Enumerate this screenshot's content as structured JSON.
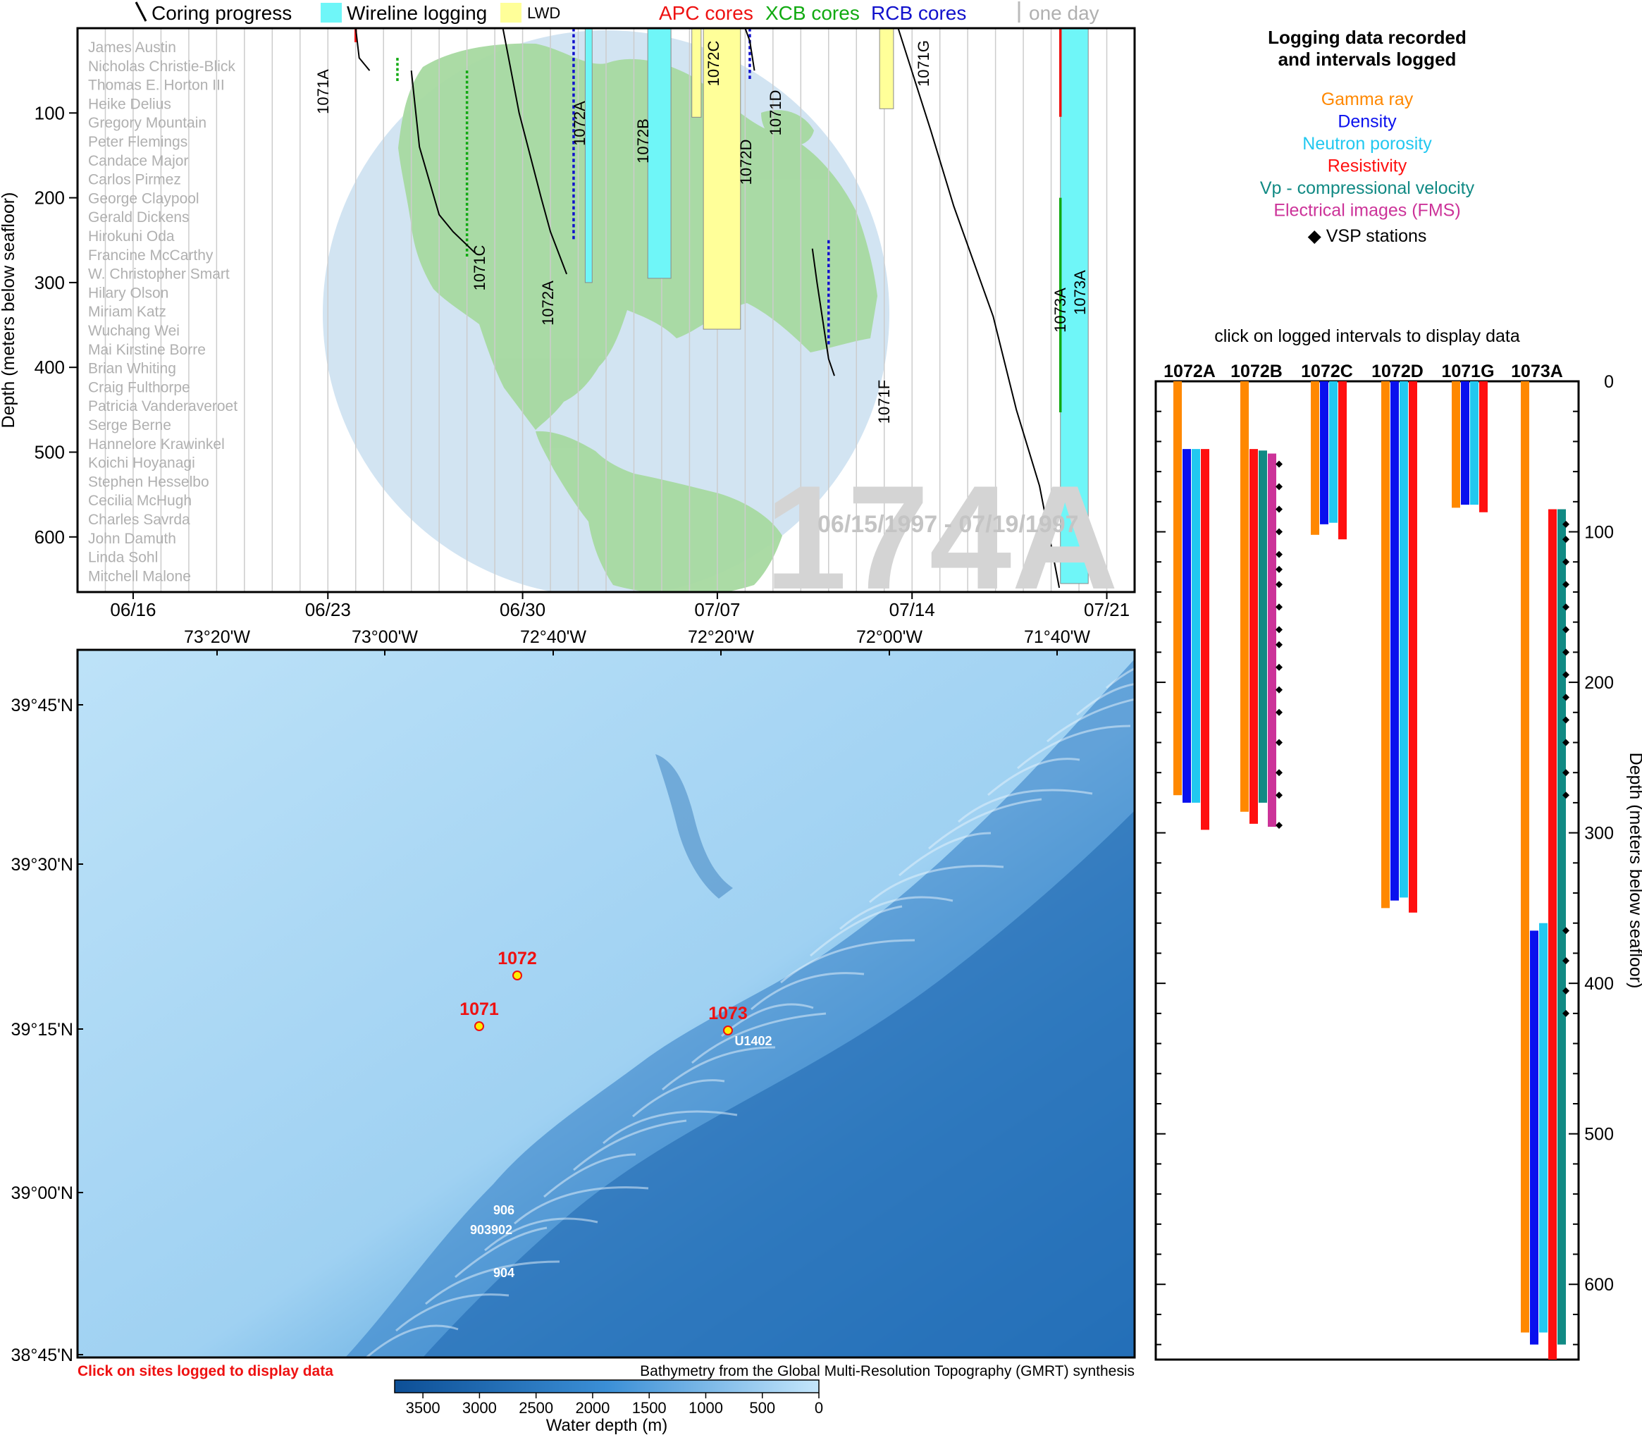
{
  "colors": {
    "apc": "#ee1111",
    "xcb": "#11aa11",
    "rcb": "#1111cc",
    "wireline": "#6ff6f8",
    "lwd": "#ffff99",
    "gamma": "#ff8800",
    "density": "#0a10ee",
    "neutron": "#22c8f0",
    "resistivity": "#ff1010",
    "vp": "#118a84",
    "fms": "#cc3399",
    "globe_ocean": "#d2e4f2",
    "globe_land": "#a6d9a0",
    "grid": "#cccccc",
    "labels_grey": "#b0b0b0",
    "watermark": "#d4d4d4",
    "bathy_shallow": "#b4dcf6",
    "bathy_deep": "#1360a6"
  },
  "legend": {
    "coring": "Coring progress",
    "wireline": "Wireline logging",
    "lwd": "LWD",
    "apc": "APC cores",
    "xcb": "XCB cores",
    "rcb": "RCB cores",
    "oneday": "one day"
  },
  "timeline": {
    "ylabel": "Depth (meters below seafloor)",
    "yticks": [
      "100",
      "200",
      "300",
      "400",
      "500",
      "600"
    ],
    "xticks": [
      "06/16",
      "06/23",
      "06/30",
      "07/07",
      "07/14",
      "07/21"
    ],
    "watermark": "174A",
    "daterange": "06/15/1997 - 07/19/1997",
    "participants": [
      "James Austin",
      "Nicholas Christie-Blick",
      "Thomas E. Horton III",
      "Heike Delius",
      "Gregory Mountain",
      "Peter Flemings",
      "Candace Major",
      "Carlos Pirmez",
      "George Claypool",
      "Gerald Dickens",
      "Hirokuni Oda",
      "Francine McCarthy",
      "W. Christopher Smart",
      "Hilary Olson",
      "Miriam Katz",
      "Wuchang Wei",
      "Mai Kirstine Borre",
      "Brian Whiting",
      "Craig Fulthorpe",
      "Patricia Vanderaveroet",
      "Serge Berne",
      "Hannelore Krawinkel",
      "Koichi Hoyanagi",
      "Stephen Hesselbo",
      "Cecilia McHugh",
      "Charles Savrda",
      "John Damuth",
      "Linda Sohl",
      "Mitchell Malone"
    ],
    "hole_labels": [
      "1071A",
      "1071C",
      "1072A",
      "1072A",
      "1072B",
      "1072C",
      "1072D",
      "1071D",
      "1071G",
      "1071F",
      "1073A",
      "1073A"
    ]
  },
  "map": {
    "lon_labels": [
      "73°20'W",
      "73°00'W",
      "72°40'W",
      "72°20'W",
      "72°00'W",
      "71°40'W"
    ],
    "lat_labels": [
      "39°45'N",
      "39°30'N",
      "39°15'N",
      "39°00'N",
      "38°45'N"
    ],
    "sites": [
      "1072",
      "1071",
      "1073"
    ],
    "other_sites": [
      "U1402",
      "906",
      "903902",
      "904"
    ],
    "click_note": "Click on sites logged to display data",
    "credit": "Bathymetry from the Global Multi-Resolution Topography (GMRT) synthesis",
    "colorbar_ticks": [
      "3500",
      "3000",
      "2500",
      "2000",
      "1500",
      "1000",
      "500",
      "0"
    ],
    "colorbar_label": "Water depth (m)"
  },
  "logs": {
    "title_line1": "Logging data recorded",
    "title_line2": "and intervals logged",
    "types": [
      "Gamma ray",
      "Density",
      "Neutron porosity",
      "Resistivity",
      "Vp - compressional velocity",
      "Electrical images (FMS)"
    ],
    "vsp": "VSP stations",
    "click_note": "click on logged intervals to display data",
    "ylabel": "Depth (meters below seafloor)"
  },
  "chart_data": [
    {
      "type": "bar",
      "title": "",
      "xlabel": "",
      "ylabel": "Depth (meters below seafloor)",
      "ylim": [
        0,
        665
      ],
      "x_range": [
        "06/14/1997",
        "07/22/1997"
      ],
      "legend": "top",
      "grid": "vertical, one day",
      "categories": [
        "06/16",
        "06/23",
        "06/30",
        "07/07",
        "07/14",
        "07/21"
      ],
      "series": [
        {
          "name": "Wireline logging",
          "intervals": [
            {
              "hole": "1072A",
              "start": "07/02 06:00",
              "end": "07/02 12:00",
              "top": 0,
              "bottom": 300
            },
            {
              "hole": "1072B",
              "start": "07/04 12:00",
              "end": "07/05 08:00",
              "top": 0,
              "bottom": 295
            },
            {
              "hole": "1073A",
              "start": "07/19 08:00",
              "end": "07/20 08:00",
              "top": 0,
              "bottom": 655
            }
          ]
        },
        {
          "name": "LWD",
          "intervals": [
            {
              "hole": "1072C",
              "start": "07/06 02:00",
              "end": "07/06 10:00",
              "top": 0,
              "bottom": 105
            },
            {
              "hole": "1072D",
              "start": "07/06 12:00",
              "end": "07/07 20:00",
              "top": 0,
              "bottom": 355
            },
            {
              "hole": "1071G",
              "start": "07/12 20:00",
              "end": "07/13 08:00",
              "top": 0,
              "bottom": 95
            }
          ]
        },
        {
          "name": "Coring progress",
          "lines": [
            {
              "hole": "1071A",
              "points": [
                [
                  "06/24 00:00",
                  0
                ],
                [
                  "06/24 03:00",
                  35
                ],
                [
                  "06/24 12:00",
                  50
                ]
              ]
            },
            {
              "hole": "1071C",
              "points": [
                [
                  "06/26 00:00",
                  50
                ],
                [
                  "06/26 07:00",
                  140
                ],
                [
                  "06/27 00:00",
                  220
                ],
                [
                  "06/27 12:00",
                  240
                ],
                [
                  "06/28 07:00",
                  265
                ]
              ]
            },
            {
              "hole": "1072A",
              "points": [
                [
                  "06/29 07:00",
                  0
                ],
                [
                  "06/29 21:00",
                  100
                ],
                [
                  "06/30 16:00",
                  200
                ],
                [
                  "07/01 00:00",
                  240
                ],
                [
                  "07/01 14:00",
                  290
                ]
              ]
            },
            {
              "hole": "1071D",
              "points": [
                [
                  "07/08 00:00",
                  0
                ],
                [
                  "07/08 04:00",
                  15
                ],
                [
                  "07/08 08:00",
                  50
                ]
              ]
            },
            {
              "hole": "1071F",
              "points": [
                [
                  "07/10 10:00",
                  260
                ],
                [
                  "07/10 14:00",
                  300
                ],
                [
                  "07/11 00:00",
                  390
                ],
                [
                  "07/11 05:00",
                  410
                ]
              ]
            },
            {
              "hole": "1073A",
              "points": [
                [
                  "07/13 12:00",
                  0
                ],
                [
                  "07/14 16:00",
                  120
                ],
                [
                  "07/15 12:00",
                  210
                ],
                [
                  "07/16 22:00",
                  340
                ],
                [
                  "07/17 18:00",
                  450
                ],
                [
                  "07/18 14:00",
                  540
                ],
                [
                  "07/19 00:00",
                  610
                ],
                [
                  "07/19 07:00",
                  660
                ]
              ]
            }
          ]
        }
      ]
    },
    {
      "type": "bar",
      "title": "Logging data recorded and intervals logged",
      "xlabel": "",
      "ylabel": "Depth (meters below seafloor)",
      "ylim": [
        0,
        650
      ],
      "yticks": [
        0,
        100,
        200,
        300,
        400,
        500,
        600
      ],
      "categories": [
        "1072A",
        "1072B",
        "1072C",
        "1072D",
        "1071G",
        "1073A"
      ],
      "intervals": {
        "1072A": [
          {
            "log": "Gamma ray",
            "top": 0,
            "bottom": 275
          },
          {
            "log": "Density",
            "top": 45,
            "bottom": 280
          },
          {
            "log": "Neutron porosity",
            "top": 45,
            "bottom": 280
          },
          {
            "log": "Resistivity",
            "top": 45,
            "bottom": 298
          }
        ],
        "1072B": [
          {
            "log": "Gamma ray",
            "top": 0,
            "bottom": 286
          },
          {
            "log": "Resistivity",
            "top": 45,
            "bottom": 294
          },
          {
            "log": "Vp - compressional velocity",
            "top": 46,
            "bottom": 280
          },
          {
            "log": "Electrical images (FMS)",
            "top": 48,
            "bottom": 296
          }
        ],
        "1072C": [
          {
            "log": "Gamma ray",
            "top": 0,
            "bottom": 102
          },
          {
            "log": "Density",
            "top": 0,
            "bottom": 95
          },
          {
            "log": "Neutron porosity",
            "top": 0,
            "bottom": 94
          },
          {
            "log": "Resistivity",
            "top": 0,
            "bottom": 105
          }
        ],
        "1072D": [
          {
            "log": "Gamma ray",
            "top": 0,
            "bottom": 350
          },
          {
            "log": "Density",
            "top": 0,
            "bottom": 345
          },
          {
            "log": "Neutron porosity",
            "top": 0,
            "bottom": 343
          },
          {
            "log": "Resistivity",
            "top": 0,
            "bottom": 353
          }
        ],
        "1071G": [
          {
            "log": "Gamma ray",
            "top": 0,
            "bottom": 84
          },
          {
            "log": "Density",
            "top": 0,
            "bottom": 82
          },
          {
            "log": "Neutron porosity",
            "top": 0,
            "bottom": 82
          },
          {
            "log": "Resistivity",
            "top": 0,
            "bottom": 87
          }
        ],
        "1073A": [
          {
            "log": "Gamma ray",
            "top": 0,
            "bottom": 632
          },
          {
            "log": "Density",
            "top": 365,
            "bottom": 640
          },
          {
            "log": "Neutron porosity",
            "top": 360,
            "bottom": 632
          },
          {
            "log": "Resistivity",
            "top": 85,
            "bottom": 650
          },
          {
            "log": "Vp - compressional velocity",
            "top": 85,
            "bottom": 640
          }
        ]
      },
      "vsp_stations": {
        "1072B": [
          55,
          70,
          85,
          100,
          115,
          125,
          135,
          150,
          165,
          175,
          190,
          205,
          220,
          240,
          260,
          275,
          295
        ],
        "1073A": [
          95,
          105,
          120,
          135,
          150,
          165,
          180,
          195,
          210,
          225,
          240,
          260,
          275,
          365,
          385,
          405,
          420
        ]
      }
    }
  ]
}
